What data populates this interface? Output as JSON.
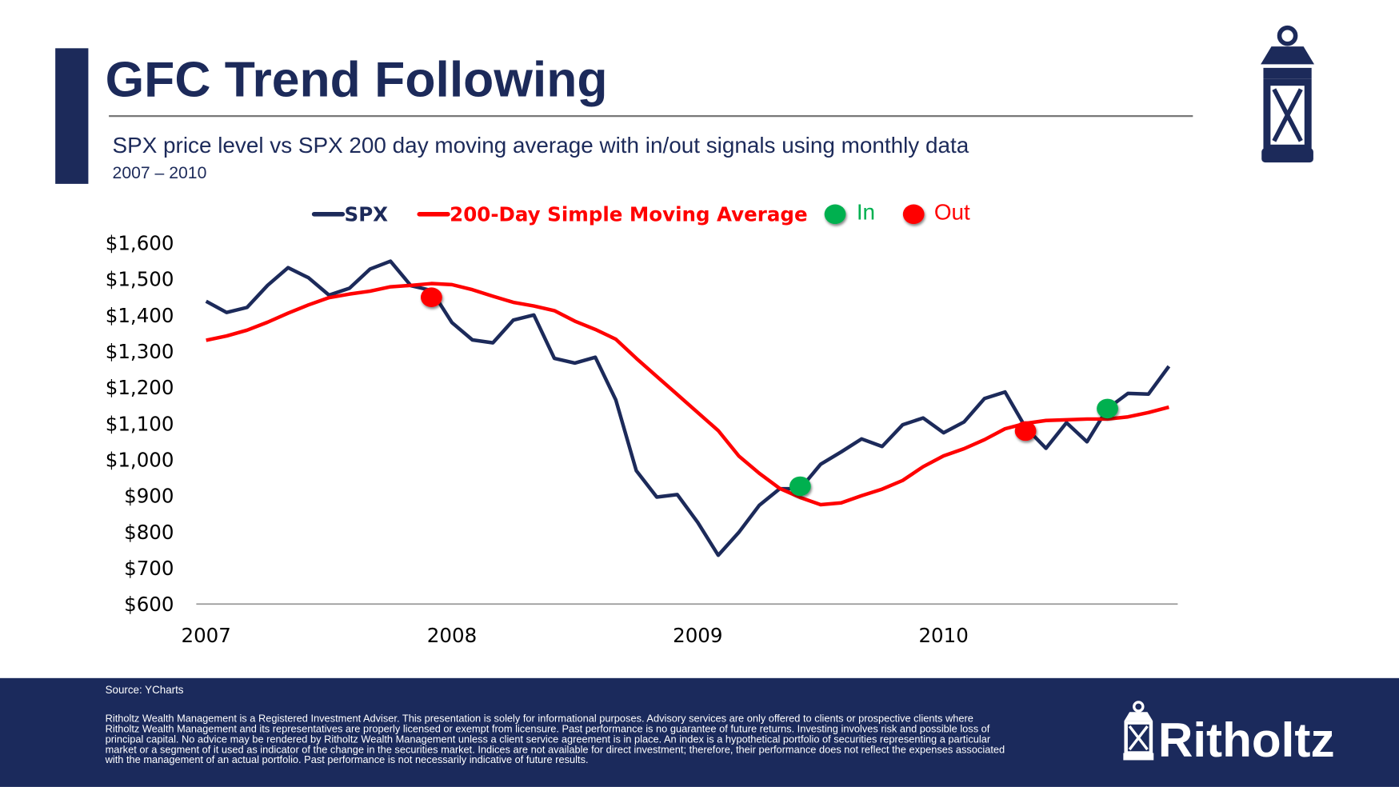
{
  "header": {
    "title": "GFC Trend Following",
    "subtitle": "SPX price level vs SPX 200 day moving average with in/out signals using monthly data",
    "period": "2007 – 2010"
  },
  "chart_data": {
    "type": "line",
    "categories": [
      "2007",
      null,
      null,
      null,
      null,
      null,
      null,
      null,
      null,
      null,
      null,
      null,
      "2008",
      null,
      null,
      null,
      null,
      null,
      null,
      null,
      null,
      null,
      null,
      null,
      "2009",
      null,
      null,
      null,
      null,
      null,
      null,
      null,
      null,
      null,
      null,
      null,
      "2010",
      null,
      null,
      null,
      null,
      null,
      null,
      null,
      null,
      null,
      null,
      null
    ],
    "series": [
      {
        "name": "SPX",
        "color": "#1c2a5a",
        "mode": "lines",
        "values": [
          1438,
          1407,
          1421,
          1482,
          1531,
          1503,
          1455,
          1474,
          1527,
          1549,
          1481,
          1468,
          1379,
          1331,
          1323,
          1386,
          1400,
          1280,
          1267,
          1283,
          1165,
          969,
          896,
          903,
          826,
          735,
          798,
          873,
          919,
          919,
          987,
          1021,
          1057,
          1036,
          1096,
          1115,
          1074,
          1104,
          1169,
          1187,
          1089,
          1031,
          1102,
          1049,
          1141,
          1183,
          1181,
          1258
        ]
      },
      {
        "name": "200-Day Simple Moving Average",
        "color": "#ff0000",
        "mode": "lines",
        "values": [
          1330,
          1342,
          1358,
          1380,
          1405,
          1428,
          1448,
          1458,
          1466,
          1478,
          1482,
          1487,
          1484,
          1470,
          1452,
          1435,
          1425,
          1412,
          1383,
          1360,
          1333,
          1280,
          1230,
          1180,
          1130,
          1080,
          1010,
          962,
          920,
          895,
          875,
          880,
          900,
          918,
          942,
          980,
          1010,
          1030,
          1055,
          1085,
          1100,
          1108,
          1110,
          1112,
          1112,
          1118,
          1130,
          1145
        ]
      },
      {
        "name": "In",
        "color": "#00b050",
        "mode": "markers",
        "values": [
          null,
          null,
          null,
          null,
          null,
          null,
          null,
          null,
          null,
          null,
          null,
          null,
          null,
          null,
          null,
          null,
          null,
          null,
          null,
          null,
          null,
          null,
          null,
          null,
          null,
          null,
          null,
          null,
          null,
          926,
          null,
          null,
          null,
          null,
          null,
          null,
          null,
          null,
          null,
          null,
          null,
          null,
          null,
          null,
          1141,
          null,
          null,
          null
        ]
      },
      {
        "name": "Out",
        "color": "#ff0000",
        "mode": "markers",
        "values": [
          null,
          null,
          null,
          null,
          null,
          null,
          null,
          null,
          null,
          null,
          null,
          1449,
          null,
          null,
          null,
          null,
          null,
          null,
          null,
          null,
          null,
          null,
          null,
          null,
          null,
          null,
          null,
          null,
          null,
          null,
          null,
          null,
          null,
          null,
          null,
          null,
          null,
          null,
          null,
          null,
          1079,
          null,
          null,
          null,
          null,
          null,
          null,
          null
        ]
      }
    ],
    "ylim": [
      600,
      1600
    ],
    "yticks": [
      {
        "value": 600,
        "label": "$600"
      },
      {
        "value": 700,
        "label": "$700"
      },
      {
        "value": 800,
        "label": "$800"
      },
      {
        "value": 900,
        "label": "$900"
      },
      {
        "value": 1000,
        "label": "$1,000"
      },
      {
        "value": 1100,
        "label": "$1,100"
      },
      {
        "value": 1200,
        "label": "$1,200"
      },
      {
        "value": 1300,
        "label": "$1,300"
      },
      {
        "value": 1400,
        "label": "$1,400"
      },
      {
        "value": 1500,
        "label": "$1,500"
      },
      {
        "value": 1600,
        "label": "$1,600"
      }
    ],
    "grid": false,
    "legend": "top"
  },
  "footer": {
    "source": "Source: YCharts",
    "disclaimer": [
      "Ritholtz Wealth Management is a Registered Investment Adviser. This presentation is solely for informational purposes. Advisory services are only offered to clients or prospective clients where",
      "Ritholtz Wealth Management and its representatives are properly licensed or exempt from licensure. Past performance is no guarantee of future returns. Investing involves risk and possible loss of",
      "principal capital. No advice may be rendered by Ritholtz Wealth Management unless a client service agreement is in place. An index is a hypothetical portfolio of securities representing a particular",
      "market or a segment of it used as indicator of the change in the securities market. Indices are not available for direct investment; therefore, their performance does not reflect the expenses associated",
      "with the management of an actual portfolio. Past performance is not necessarily indicative of future results."
    ],
    "logo": "Ritholtz"
  }
}
